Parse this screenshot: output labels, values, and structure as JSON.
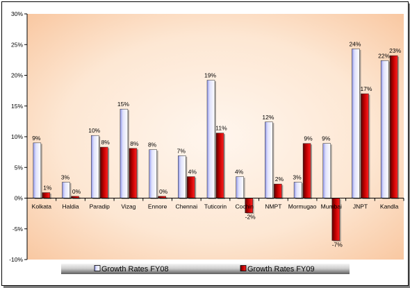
{
  "chart_data": {
    "type": "bar",
    "categories": [
      "Kolkata",
      "Haldia",
      "Paradip",
      "Vizag",
      "Ennore",
      "Chennai",
      "Tuticorin",
      "Cochin",
      "NMPT",
      "Mormugao",
      "Mumbai",
      "JNPT",
      "Kandla"
    ],
    "series": [
      {
        "name": "Growth Rates FY08",
        "values": [
          9,
          2.6,
          10.2,
          14.5,
          7.9,
          6.9,
          19.2,
          3.5,
          12.4,
          2.6,
          8.9,
          24.3,
          22.4
        ],
        "labels": [
          "9%",
          "3%",
          "10%",
          "15%",
          "8%",
          "7%",
          "19%",
          "4%",
          "12%",
          "3%",
          "9%",
          "24%",
          "22%"
        ],
        "color": "#c9cdf6"
      },
      {
        "name": "Growth Rates FY09",
        "values": [
          0.9,
          0.3,
          8.3,
          8.1,
          0.3,
          3.5,
          10.6,
          -2.4,
          2.3,
          8.9,
          -6.9,
          17.0,
          23.2
        ],
        "labels": [
          "1%",
          "0%",
          "8%",
          "8%",
          "0%",
          "4%",
          "11%",
          "-2%",
          "2%",
          "9%",
          "-7%",
          "17%",
          "23%"
        ],
        "color": "#cc0000"
      }
    ],
    "ylim": [
      -10,
      30
    ],
    "yticks": [
      -10,
      -5,
      0,
      5,
      10,
      15,
      20,
      25,
      30
    ],
    "ytick_labels": [
      "-10%",
      "-5%",
      "0%",
      "5%",
      "10%",
      "15%",
      "20%",
      "25%",
      "30%"
    ],
    "title": "",
    "xlabel": "",
    "ylabel": "",
    "grid": false,
    "legend_position": "bottom",
    "colors": {
      "plot_background_edge": "#f8c9a0",
      "plot_background_center": "#fff6ee",
      "legend_bar_dark": "#6e6e6e",
      "legend_bar_light": "#f2f2f2"
    }
  }
}
